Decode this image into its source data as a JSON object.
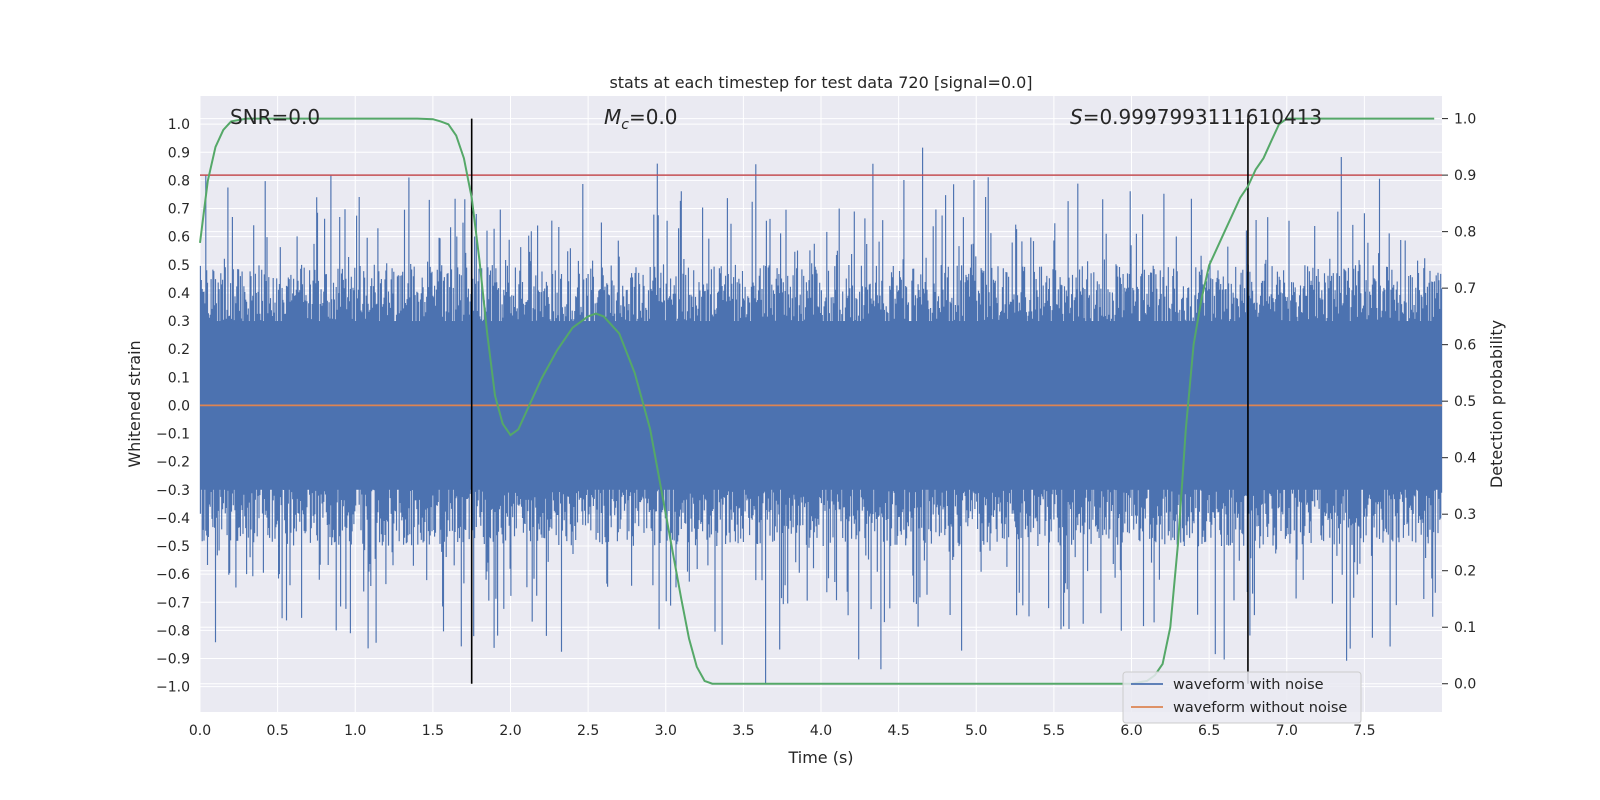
{
  "chart_data": {
    "type": "line",
    "title": "stats at each timestep for test data 720 [signal=0.0]",
    "xlabel": "Time (s)",
    "ylabel": "Whitened strain",
    "y2label": "Detection probability",
    "xlim": [
      0.0,
      8.0
    ],
    "ylim": [
      -1.09,
      1.1
    ],
    "y2lim": [
      -0.05,
      1.04
    ],
    "x_ticks": [
      "0.0",
      "0.5",
      "1.0",
      "1.5",
      "2.0",
      "2.5",
      "3.0",
      "3.5",
      "4.0",
      "4.5",
      "5.0",
      "5.5",
      "6.0",
      "6.5",
      "7.0",
      "7.5"
    ],
    "y_ticks": [
      "1.0",
      "0.9",
      "0.8",
      "0.7",
      "0.6",
      "0.5",
      "0.4",
      "0.3",
      "0.2",
      "0.1",
      "0.0",
      "-0.1",
      "-0.2",
      "-0.3",
      "-0.4",
      "-0.5",
      "-0.6",
      "-0.7",
      "-0.8",
      "-0.9",
      "-1.0"
    ],
    "y2_ticks": [
      "1.0",
      "0.9",
      "0.8",
      "0.7",
      "0.6",
      "0.5",
      "0.4",
      "0.3",
      "0.2",
      "0.1",
      "0.0"
    ],
    "annotations": {
      "snr": "SNR=0.0",
      "mc": "=0.0",
      "mc_symbol": "M",
      "mc_sub": "c",
      "s": "=0.9997993111610413",
      "s_symbol": "S"
    },
    "threshold_y2": 0.9,
    "vlines_x": [
      1.75,
      6.75
    ],
    "series": [
      {
        "name": "waveform with noise",
        "color": "#4c72b0",
        "axis": "left",
        "description": "noise ~ amplitude within approx -0.95..0.95 over 0..8 s"
      },
      {
        "name": "waveform without noise",
        "color": "#dd8452",
        "axis": "left",
        "x": [
          0.0,
          8.0
        ],
        "y": [
          0.0,
          0.0
        ]
      },
      {
        "name": "detection probability",
        "color": "#55a868",
        "axis": "right",
        "x": [
          0.0,
          0.05,
          0.1,
          0.15,
          0.2,
          0.3,
          0.4,
          0.6,
          0.8,
          1.0,
          1.2,
          1.4,
          1.5,
          1.55,
          1.6,
          1.65,
          1.7,
          1.75,
          1.8,
          1.85,
          1.9,
          1.95,
          2.0,
          2.05,
          2.1,
          2.2,
          2.3,
          2.4,
          2.5,
          2.55,
          2.6,
          2.7,
          2.8,
          2.9,
          3.0,
          3.1,
          3.15,
          3.2,
          3.25,
          3.3,
          3.5,
          4.0,
          5.0,
          6.0,
          6.1,
          6.15,
          6.2,
          6.25,
          6.3,
          6.35,
          6.4,
          6.45,
          6.5,
          6.6,
          6.7,
          6.75,
          6.8,
          6.85,
          6.9,
          6.95,
          7.0,
          7.1,
          7.5,
          7.95
        ],
        "y": [
          0.78,
          0.89,
          0.95,
          0.98,
          0.995,
          1.0,
          1.0,
          1.0,
          1.0,
          1.0,
          1.0,
          1.0,
          0.999,
          0.995,
          0.99,
          0.97,
          0.93,
          0.86,
          0.75,
          0.62,
          0.51,
          0.46,
          0.44,
          0.45,
          0.48,
          0.54,
          0.59,
          0.63,
          0.65,
          0.655,
          0.65,
          0.62,
          0.55,
          0.45,
          0.3,
          0.15,
          0.08,
          0.03,
          0.005,
          0.0,
          0.0,
          0.0,
          0.0,
          0.0,
          0.005,
          0.015,
          0.035,
          0.1,
          0.25,
          0.45,
          0.6,
          0.68,
          0.74,
          0.8,
          0.86,
          0.88,
          0.91,
          0.93,
          0.96,
          0.99,
          1.0,
          1.0,
          1.0,
          1.0
        ]
      }
    ],
    "legend": {
      "position": "lower-right",
      "entries": [
        "waveform with noise",
        "waveform without noise"
      ]
    },
    "colors": {
      "plot_bg": "#eaeaf2",
      "grid": "#ffffff",
      "threshold": "#c44e52",
      "vline": "#000000"
    }
  }
}
